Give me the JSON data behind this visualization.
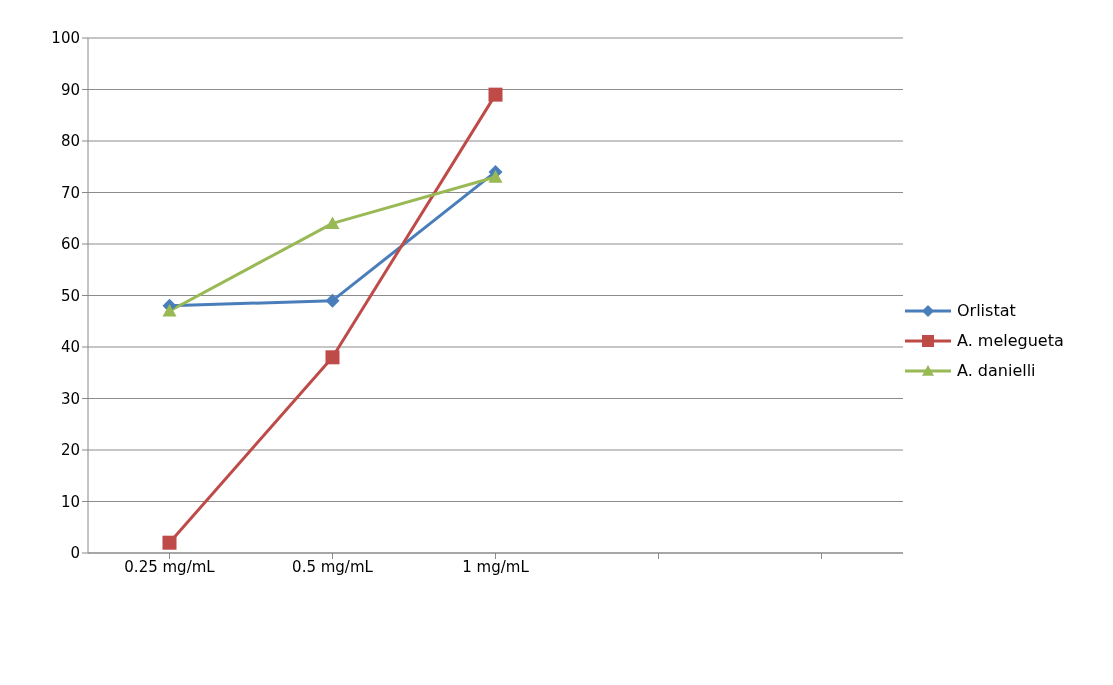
{
  "chart_data": {
    "type": "line",
    "categories": [
      "0.25 mg/mL",
      "0.5 mg/mL",
      "1 mg/mL",
      null,
      null
    ],
    "series": [
      {
        "name": "Orlistat",
        "color": "#4a7ebb",
        "marker": "diamond",
        "values": [
          48,
          49,
          74,
          null,
          null
        ]
      },
      {
        "name": "A. melegueta",
        "color": "#be4b48",
        "marker": "square",
        "values": [
          2,
          38,
          89,
          null,
          null
        ]
      },
      {
        "name": "A. danielli",
        "color": "#98b954",
        "marker": "triangle",
        "values": [
          47,
          64,
          73,
          null,
          null
        ]
      }
    ],
    "ylim": [
      0,
      100
    ],
    "yticks": [
      0,
      10,
      20,
      30,
      40,
      50,
      60,
      70,
      80,
      90,
      100
    ],
    "grid": "y",
    "legend": "right"
  }
}
